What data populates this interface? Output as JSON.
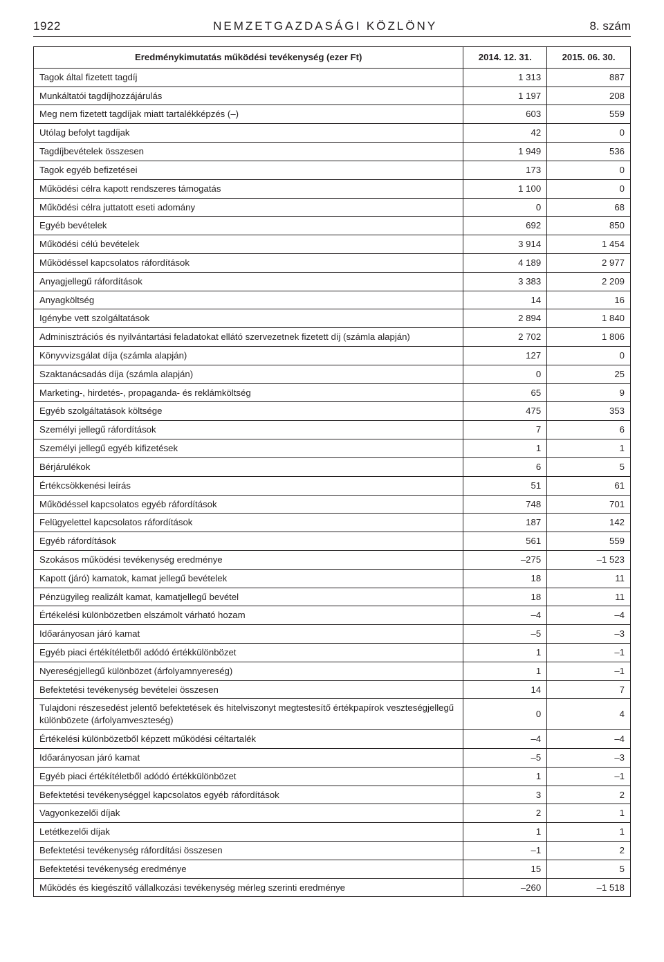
{
  "header": {
    "page_number": "1922",
    "journal_title": "NEMZETGAZDASÁGI KÖZLÖNY",
    "issue": "8. szám"
  },
  "table": {
    "columns": {
      "title": "Eredménykimutatás működési tevékenység (ezer Ft)",
      "col1": "2014. 12. 31.",
      "col2": "2015. 06. 30."
    },
    "rows": [
      {
        "label": "Tagok által fizetett tagdíj",
        "v1": "1 313",
        "v2": "887"
      },
      {
        "label": "Munkáltatói tagdíjhozzájárulás",
        "v1": "1 197",
        "v2": "208"
      },
      {
        "label": "Meg nem fizetett tagdíjak miatt tartalékképzés (–)",
        "v1": "603",
        "v2": "559"
      },
      {
        "label": "Utólag befolyt tagdíjak",
        "v1": "42",
        "v2": "0"
      },
      {
        "label": "Tagdíjbevételek összesen",
        "v1": "1 949",
        "v2": "536"
      },
      {
        "label": "Tagok egyéb befizetései",
        "v1": "173",
        "v2": "0"
      },
      {
        "label": "Működési célra kapott rendszeres támogatás",
        "v1": "1 100",
        "v2": "0"
      },
      {
        "label": "Működési célra juttatott eseti adomány",
        "v1": "0",
        "v2": "68"
      },
      {
        "label": "Egyéb bevételek",
        "v1": "692",
        "v2": "850"
      },
      {
        "label": "Működési célú bevételek",
        "v1": "3 914",
        "v2": "1 454"
      },
      {
        "label": "Működéssel kapcsolatos ráfordítások",
        "v1": "4 189",
        "v2": "2 977"
      },
      {
        "label": "Anyagjellegű ráfordítások",
        "v1": "3 383",
        "v2": "2 209"
      },
      {
        "label": "Anyagköltség",
        "v1": "14",
        "v2": "16"
      },
      {
        "label": "Igénybe vett szolgáltatások",
        "v1": "2 894",
        "v2": "1 840"
      },
      {
        "label": "Adminisztrációs és nyilvántartási feladatokat ellátó szervezetnek fizetett díj (számla alapján)",
        "v1": "2 702",
        "v2": "1 806"
      },
      {
        "label": "Könyvvizsgálat díja (számla alapján)",
        "v1": "127",
        "v2": "0"
      },
      {
        "label": "Szaktanácsadás díja (számla alapján)",
        "v1": "0",
        "v2": "25"
      },
      {
        "label": "Marketing-, hirdetés-, propaganda- és reklámköltség",
        "v1": "65",
        "v2": "9"
      },
      {
        "label": "Egyéb szolgáltatások költsége",
        "v1": "475",
        "v2": "353"
      },
      {
        "label": "Személyi jellegű ráfordítások",
        "v1": "7",
        "v2": "6"
      },
      {
        "label": "Személyi jellegű egyéb kifizetések",
        "v1": "1",
        "v2": "1"
      },
      {
        "label": "Bérjárulékok",
        "v1": "6",
        "v2": "5"
      },
      {
        "label": "Értékcsökkenési leírás",
        "v1": "51",
        "v2": "61"
      },
      {
        "label": "Működéssel kapcsolatos egyéb ráfordítások",
        "v1": "748",
        "v2": "701"
      },
      {
        "label": "Felügyelettel kapcsolatos ráfordítások",
        "v1": "187",
        "v2": "142"
      },
      {
        "label": "Egyéb ráfordítások",
        "v1": "561",
        "v2": "559"
      },
      {
        "label": "Szokásos működési tevékenység eredménye",
        "v1": "–275",
        "v2": "–1 523"
      },
      {
        "label": "Kapott (járó) kamatok, kamat jellegű bevételek",
        "v1": "18",
        "v2": "11"
      },
      {
        "label": "Pénzügyileg realizált kamat, kamatjellegű bevétel",
        "v1": "18",
        "v2": "11"
      },
      {
        "label": "Értékelési különbözetben elszámolt várható hozam",
        "v1": "–4",
        "v2": "–4"
      },
      {
        "label": "Időarányosan járó kamat",
        "v1": "–5",
        "v2": "–3"
      },
      {
        "label": "Egyéb piaci értékítéletből adódó értékkülönbözet",
        "v1": "1",
        "v2": "–1"
      },
      {
        "label": "Nyereségjellegű különbözet (árfolyamnyereség)",
        "v1": "1",
        "v2": "–1"
      },
      {
        "label": "Befektetési tevékenység bevételei összesen",
        "v1": "14",
        "v2": "7"
      },
      {
        "label": "Tulajdoni részesedést jelentő befektetések és hitelviszonyt megtestesítő értékpapírok veszteségjellegű különbözete (árfolyamveszteség)",
        "v1": "0",
        "v2": "4"
      },
      {
        "label": "Értékelési különbözetből képzett működési céltartalék",
        "v1": "–4",
        "v2": "–4"
      },
      {
        "label": "Időarányosan járó kamat",
        "v1": "–5",
        "v2": "–3"
      },
      {
        "label": "Egyéb piaci értékítéletből adódó értékkülönbözet",
        "v1": "1",
        "v2": "–1"
      },
      {
        "label": "Befektetési tevékenységgel kapcsolatos egyéb ráfordítások",
        "v1": "3",
        "v2": "2"
      },
      {
        "label": "Vagyonkezelői díjak",
        "v1": "2",
        "v2": "1"
      },
      {
        "label": "Letétkezelői díjak",
        "v1": "1",
        "v2": "1"
      },
      {
        "label": "Befektetési tevékenység ráfordítási összesen",
        "v1": "–1",
        "v2": "2"
      },
      {
        "label": "Befektetési tevékenység eredménye",
        "v1": "15",
        "v2": "5"
      },
      {
        "label": "Működés és kiegészítő vállalkozási tevékenység mérleg szerinti eredménye",
        "v1": "–260",
        "v2": "–1 518"
      }
    ]
  }
}
